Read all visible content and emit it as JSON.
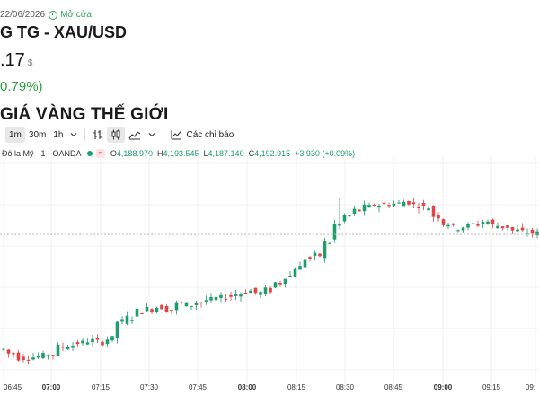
{
  "header": {
    "date": "22/06/2026",
    "market_status": "Mở cửa",
    "symbol_title": "G TG - XAU/USD",
    "price": ".17",
    "currency": "$",
    "change": " 0.79%)",
    "section_title": "GIÁ VÀNG THẾ GIỚI"
  },
  "toolbar": {
    "intervals": [
      "1m",
      "30m",
      "1h"
    ],
    "active_interval": "1m",
    "indicators_label": "Các chỉ báo"
  },
  "legend": {
    "series_label": "Đô la Mỹ · 1 · OANDA",
    "badge": "≈",
    "open_label": "O",
    "open_value": "4,188.970",
    "high_label": "H",
    "high_value": "4,193.545",
    "low_label": "L",
    "low_value": "4,187.140",
    "close_label": "C",
    "close_value": "4,192.915",
    "change_value": "+3.930 (+0.09%)"
  },
  "colors": {
    "up": "#1f9d6b",
    "down": "#e04444",
    "grid": "#f0f0f0",
    "price_line": "#b0b0b0",
    "accent_green": "#2ea043"
  },
  "chart_data": {
    "type": "candlestick",
    "x_ticks": [
      "06:45",
      "07:00",
      "07:15",
      "07:30",
      "07:45",
      "08:00",
      "08:15",
      "08:30",
      "08:45",
      "09:00",
      "09:15",
      "09:"
    ],
    "major_ticks": [
      "07:00",
      "08:00",
      "09:00"
    ],
    "close_path": [
      4162.8,
      4161.6,
      4160.4,
      4160.6,
      4160.9,
      4161.5,
      4163.4,
      4164.0,
      4164.6,
      4165.2,
      4164.8,
      4165.7,
      4170.6,
      4171.7,
      4173.5,
      4174.1,
      4174.7,
      4173.9,
      4175.6,
      4175.3,
      4175.9,
      4176.6,
      4177.1,
      4177.7,
      4178.4,
      4179.2,
      4178.6,
      4179.4,
      4181.5,
      4183.4,
      4185.8,
      4188.3,
      4189.1,
      4192.9,
      4197.9,
      4200.3,
      4201.8,
      4202.7,
      4203.4,
      4203.4,
      4203.7,
      4204.2,
      4203.3,
      4202.7,
      4200.2,
      4198.1,
      4196.9,
      4197.3,
      4197.9,
      4198.7,
      4197.5,
      4197.2,
      4196.1,
      4195.7,
      4195.4,
      4195.8,
      4193.2,
      4193.8,
      4192.8,
      4193.7,
      4192.4,
      4191.4,
      4191.0,
      4191.8,
      4192.6,
      4192.8
    ]
  }
}
